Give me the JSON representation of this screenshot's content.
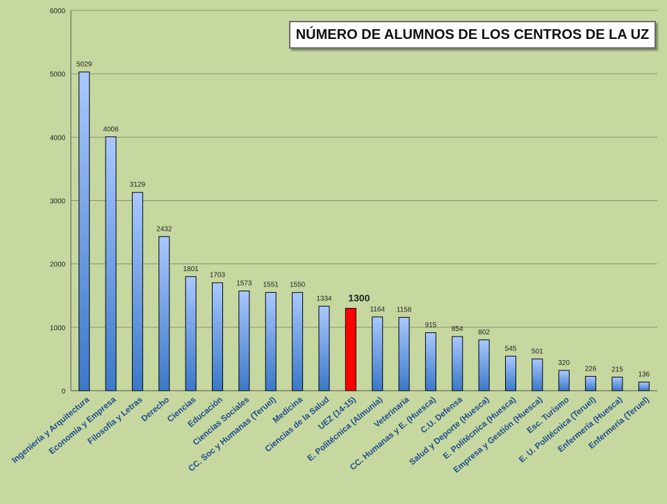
{
  "chart_data": {
    "type": "bar",
    "title": "NÚMERO DE ALUMNOS DE LOS CENTROS DE LA UZ",
    "xlabel": "",
    "ylabel": "",
    "ylim": [
      0,
      6000
    ],
    "yticks": [
      0,
      1000,
      2000,
      3000,
      4000,
      5000,
      6000
    ],
    "grid": true,
    "categories": [
      "Ingeniería y Arquitectura",
      "Economía y Empresa",
      "Filosofía y Letras",
      "Derecho",
      "Ciencias",
      "Educación",
      "Ciencias Sociales",
      "CC. Soc y Humanas (Teruel)",
      "Medicina",
      "Ciencias de la Salud",
      "UEZ (14-15)",
      "E. Politécnica (Almunia)",
      "Veterinaria",
      "CC. Humanas y E. (Huesca)",
      "C.U. Defensa",
      "Salud y Deporte (Huesca)",
      "E. Politécnica (Huesca)",
      "Empresa y Gestión (Huesca)",
      "Esc. Turismo",
      "E. U. Politécnica (Teruel)",
      "Enfermería (Huesca)",
      "Enfermería (Teruel)"
    ],
    "values": [
      5029,
      4006,
      3129,
      2432,
      1801,
      1703,
      1573,
      1551,
      1550,
      1334,
      1300,
      1164,
      1158,
      915,
      854,
      802,
      545,
      501,
      320,
      226,
      215,
      136
    ],
    "highlight": {
      "category": "UEZ (14-15)",
      "color": "#ff0000"
    },
    "colors": {
      "bar_top": "#a9c8ff",
      "bar_bottom": "#3a78c9",
      "gridline": "#8a9070",
      "background": "#c6d8a0"
    }
  }
}
